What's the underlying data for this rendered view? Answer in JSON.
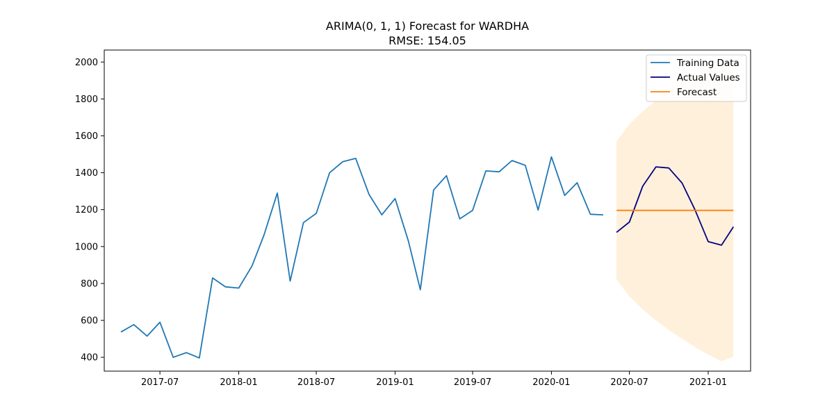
{
  "chart_data": {
    "type": "line",
    "title": "ARIMA(0, 1, 1) Forecast for WARDHA",
    "subtitle": "RMSE: 154.05",
    "xlabel": "",
    "ylabel": "",
    "ylim": [
      325,
      2065
    ],
    "xlim": [
      "2017-02-21",
      "2021-04-10"
    ],
    "y_ticks": [
      400,
      600,
      800,
      1000,
      1200,
      1400,
      1600,
      1800,
      2000
    ],
    "x_ticks": [
      {
        "date": "2017-07-01",
        "label": "2017-07"
      },
      {
        "date": "2018-01-01",
        "label": "2018-01"
      },
      {
        "date": "2018-07-01",
        "label": "2018-07"
      },
      {
        "date": "2019-01-01",
        "label": "2019-01"
      },
      {
        "date": "2019-07-01",
        "label": "2019-07"
      },
      {
        "date": "2020-01-01",
        "label": "2020-01"
      },
      {
        "date": "2020-07-01",
        "label": "2020-07"
      },
      {
        "date": "2021-01-01",
        "label": "2021-01"
      }
    ],
    "grid": false,
    "legend_position": "top-right",
    "series": [
      {
        "name": "Training Data",
        "color": "#1f77b4",
        "x": [
          "2017-04-01",
          "2017-05-01",
          "2017-06-01",
          "2017-07-01",
          "2017-08-01",
          "2017-09-01",
          "2017-10-01",
          "2017-11-01",
          "2017-12-01",
          "2018-01-01",
          "2018-02-01",
          "2018-03-01",
          "2018-04-01",
          "2018-05-01",
          "2018-06-01",
          "2018-07-01",
          "2018-08-01",
          "2018-09-01",
          "2018-10-01",
          "2018-11-01",
          "2018-12-01",
          "2019-01-01",
          "2019-02-01",
          "2019-03-01",
          "2019-04-01",
          "2019-05-01",
          "2019-06-01",
          "2019-07-01",
          "2019-08-01",
          "2019-09-01",
          "2019-10-01",
          "2019-11-01",
          "2019-12-01",
          "2020-01-01",
          "2020-02-01",
          "2020-03-01",
          "2020-04-01",
          "2020-05-01"
        ],
        "values": [
          537,
          577,
          515,
          590,
          400,
          425,
          396,
          830,
          782,
          775,
          895,
          1063,
          1290,
          813,
          1130,
          1180,
          1400,
          1460,
          1478,
          1283,
          1172,
          1260,
          1030,
          766,
          1307,
          1384,
          1150,
          1196,
          1410,
          1405,
          1466,
          1440,
          1198,
          1486,
          1277,
          1346,
          1175,
          1172
        ]
      },
      {
        "name": "Actual Values",
        "color": "#000080",
        "x": [
          "2020-06-01",
          "2020-07-01",
          "2020-08-01",
          "2020-09-01",
          "2020-10-01",
          "2020-11-01",
          "2020-12-01",
          "2021-01-01",
          "2021-02-01",
          "2021-03-01"
        ],
        "values": [
          1077,
          1133,
          1327,
          1432,
          1426,
          1344,
          1200,
          1027,
          1008,
          1107
        ]
      },
      {
        "name": "Forecast",
        "color": "#ff7f0e",
        "x": [
          "2020-06-01",
          "2020-07-01",
          "2020-08-01",
          "2020-09-01",
          "2020-10-01",
          "2020-11-01",
          "2020-12-01",
          "2021-01-01",
          "2021-02-01",
          "2021-03-01"
        ],
        "values": [
          1196,
          1196,
          1196,
          1196,
          1196,
          1196,
          1196,
          1196,
          1196,
          1196
        ],
        "interval": {
          "color": "#fdebcf",
          "lower": [
            822,
            730,
            660,
            600,
            548,
            500,
            456,
            415,
            378,
            404
          ],
          "upper": [
            1570,
            1662,
            1732,
            1792,
            1844,
            1892,
            1936,
            1977,
            2014,
            1988
          ]
        }
      }
    ]
  }
}
